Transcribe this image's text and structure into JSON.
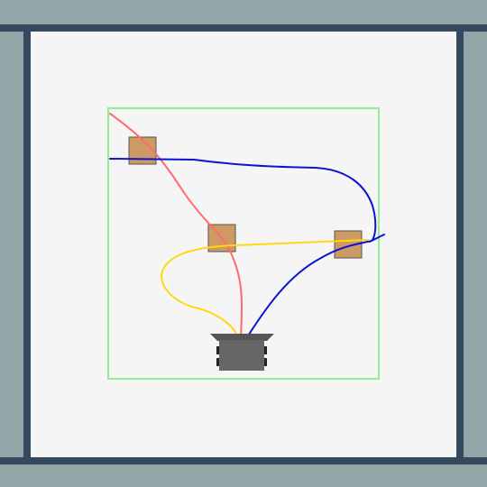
{
  "scene": {
    "background": "#93a5a6",
    "wall_color": "#34495e",
    "floor_color": "#f5f5f5",
    "zone_color": "#90ee90"
  },
  "boxes": [
    {
      "id": "box-top-left",
      "color": "#cd9a64"
    },
    {
      "id": "box-center",
      "color": "#cd9a64"
    },
    {
      "id": "box-right",
      "color": "#cd9a64"
    }
  ],
  "robot": {
    "body_color": "#666666",
    "gripper_color": "#555555",
    "wheel_color": "#222222"
  },
  "trajectories": [
    {
      "id": "trajectory-red",
      "color": "#ff6b6b"
    },
    {
      "id": "trajectory-blue",
      "color": "#0a14d2"
    },
    {
      "id": "trajectory-yellow",
      "color": "#ffd814"
    }
  ]
}
